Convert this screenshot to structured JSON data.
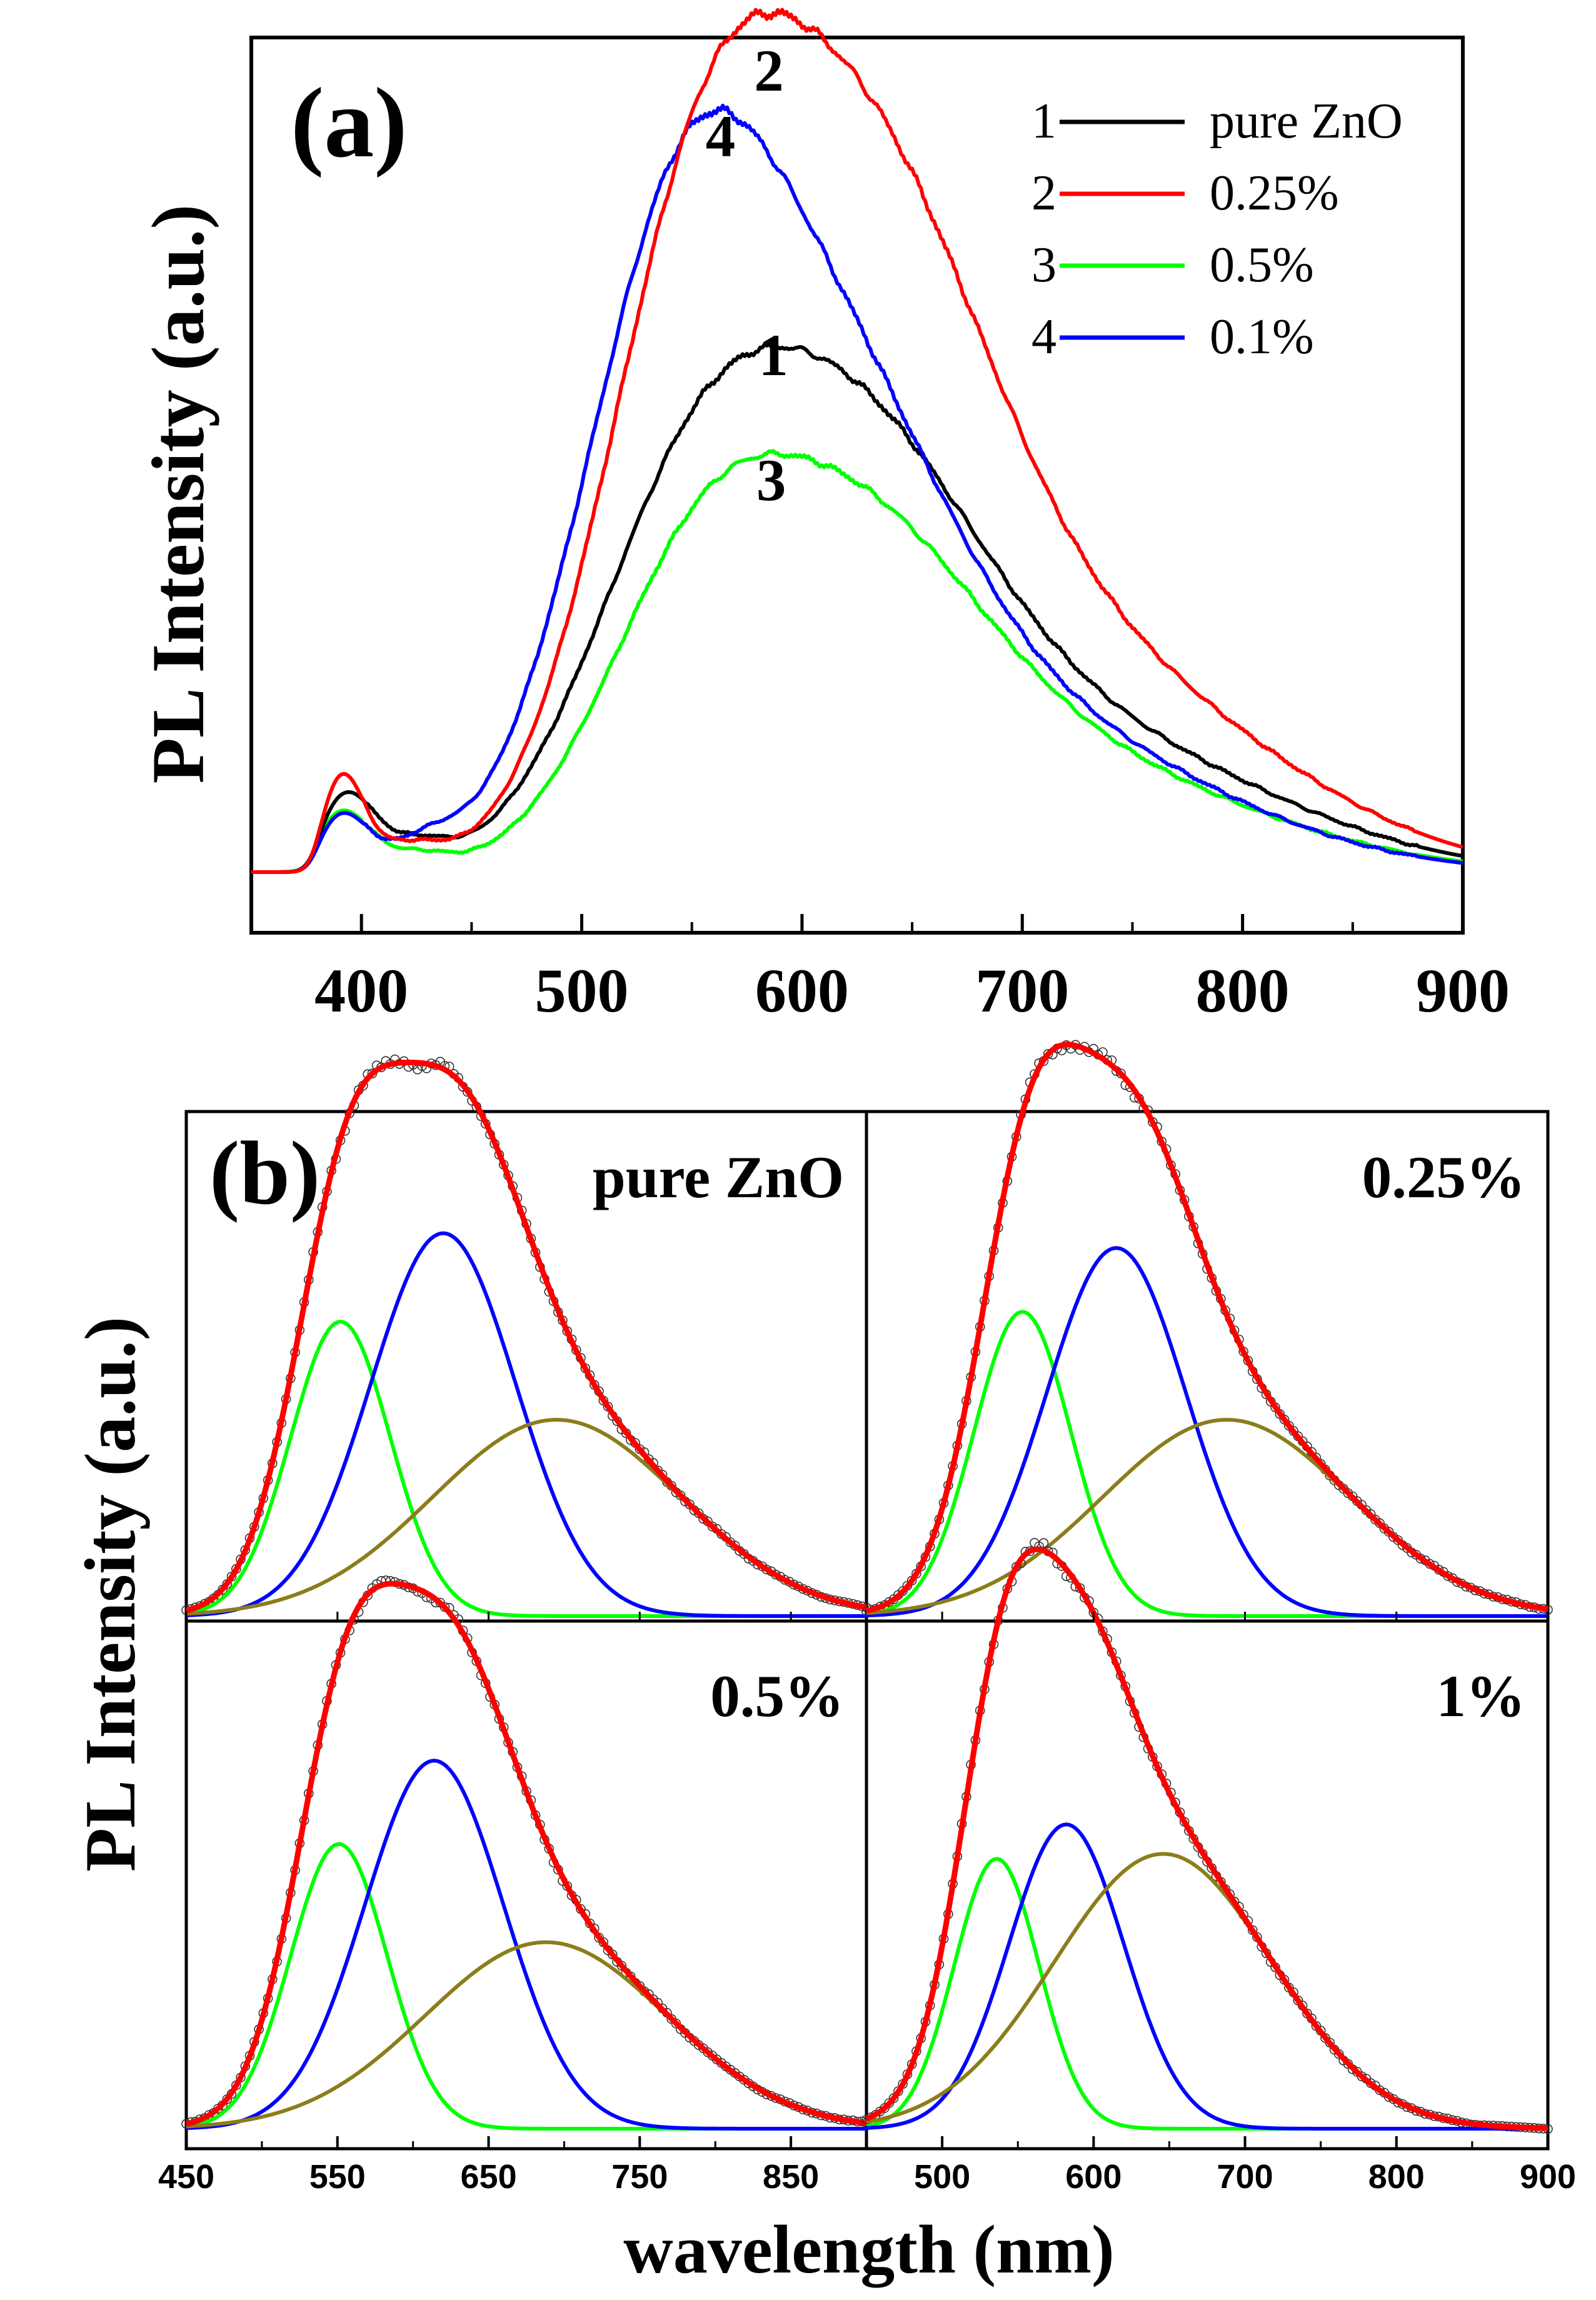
{
  "chart_data": [
    {
      "panel": "a",
      "type": "line",
      "panel_label": "(a)",
      "ylabel": "PL Intensity (a.u.)",
      "xlabel": "",
      "xlim": [
        350,
        900
      ],
      "ylim": [
        0,
        1.0
      ],
      "xticks": [
        400,
        500,
        600,
        700,
        800,
        900
      ],
      "yticks": [],
      "legend_position": "top-right",
      "series": [
        {
          "index": "1",
          "name": "pure ZnO",
          "color": "#000000",
          "peak_label": "1",
          "peak_x": 587,
          "peaks": [
            {
              "c": 393,
              "a": 0.095,
              "w": 13
            },
            {
              "c": 425,
              "a": 0.03,
              "w": 14
            },
            {
              "c": 545,
              "a": 0.32,
              "w": 45
            },
            {
              "c": 618,
              "a": 0.43,
              "w": 58
            },
            {
              "c": 700,
              "a": 0.16,
              "w": 85
            },
            {
              "c": 795,
              "a": 0.03,
              "w": 70
            }
          ]
        },
        {
          "index": "2",
          "name": "0.25%",
          "color": "#ff0000",
          "peak_label": "2",
          "peak_x": 585,
          "peaks": [
            {
              "c": 391,
              "a": 0.115,
              "w": 10
            },
            {
              "c": 420,
              "a": 0.03,
              "w": 16
            },
            {
              "c": 548,
              "a": 0.55,
              "w": 42
            },
            {
              "c": 620,
              "a": 0.7,
              "w": 57
            },
            {
              "c": 700,
              "a": 0.26,
              "w": 85
            },
            {
              "c": 800,
              "a": 0.04,
              "w": 70
            }
          ]
        },
        {
          "index": "3",
          "name": "0.5%",
          "color": "#00ff00",
          "peak_label": "3",
          "peak_x": 586,
          "peaks": [
            {
              "c": 391,
              "a": 0.075,
              "w": 13
            },
            {
              "c": 425,
              "a": 0.02,
              "w": 14
            },
            {
              "c": 548,
              "a": 0.25,
              "w": 42
            },
            {
              "c": 618,
              "a": 0.33,
              "w": 57
            },
            {
              "c": 690,
              "a": 0.14,
              "w": 85
            },
            {
              "c": 795,
              "a": 0.02,
              "w": 70
            }
          ]
        },
        {
          "index": "4",
          "name": "0.1%",
          "color": "#0000ff",
          "peak_label": "4",
          "peak_x": 563,
          "peaks": [
            {
              "c": 391,
              "a": 0.07,
              "w": 12
            },
            {
              "c": 428,
              "a": 0.03,
              "w": 15
            },
            {
              "c": 540,
              "a": 0.6,
              "w": 43
            },
            {
              "c": 606,
              "a": 0.5,
              "w": 55
            },
            {
              "c": 690,
              "a": 0.17,
              "w": 80
            },
            {
              "c": 790,
              "a": 0.02,
              "w": 70
            }
          ]
        }
      ]
    },
    {
      "panel": "b",
      "type": "line",
      "panel_label": "(b)",
      "ylabel": "PL Intensity (a.u.)",
      "xlabel": "wavelength (nm)",
      "left_xlim": [
        450,
        900
      ],
      "left_xticks": [
        450,
        550,
        650,
        750,
        850
      ],
      "right_xlim": [
        450,
        900
      ],
      "right_xticks": [
        500,
        600,
        700,
        800,
        900
      ],
      "subplots": [
        {
          "label": "pure ZnO",
          "position": "top-left",
          "components": [
            {
              "color": "#00ff00",
              "c": 552,
              "a": 0.6,
              "w": 33
            },
            {
              "color": "#0000ff",
              "c": 620,
              "a": 0.78,
              "w": 48
            },
            {
              "color": "#8b7d1a",
              "c": 695,
              "a": 0.4,
              "w": 82
            }
          ]
        },
        {
          "label": "0.25%",
          "position": "top-right",
          "components": [
            {
              "color": "#00ff00",
              "c": 553,
              "a": 0.62,
              "w": 32
            },
            {
              "color": "#0000ff",
              "c": 615,
              "a": 0.75,
              "w": 46
            },
            {
              "color": "#8b7d1a",
              "c": 688,
              "a": 0.4,
              "w": 82
            }
          ]
        },
        {
          "label": "0.5%",
          "position": "bottom-left",
          "components": [
            {
              "color": "#00ff00",
              "c": 551,
              "a": 0.58,
              "w": 32
            },
            {
              "color": "#0000ff",
              "c": 614,
              "a": 0.75,
              "w": 46
            },
            {
              "color": "#8b7d1a",
              "c": 688,
              "a": 0.38,
              "w": 80
            }
          ]
        },
        {
          "label": "1%",
          "position": "bottom-right",
          "components": [
            {
              "color": "#00ff00",
              "c": 536,
              "a": 0.55,
              "w": 28
            },
            {
              "color": "#0000ff",
              "c": 582,
              "a": 0.62,
              "w": 38
            },
            {
              "color": "#8b7d1a",
              "c": 646,
              "a": 0.56,
              "w": 72
            }
          ]
        }
      ],
      "fit_color": "#ff0000",
      "data_marker": "open-circle"
    }
  ]
}
